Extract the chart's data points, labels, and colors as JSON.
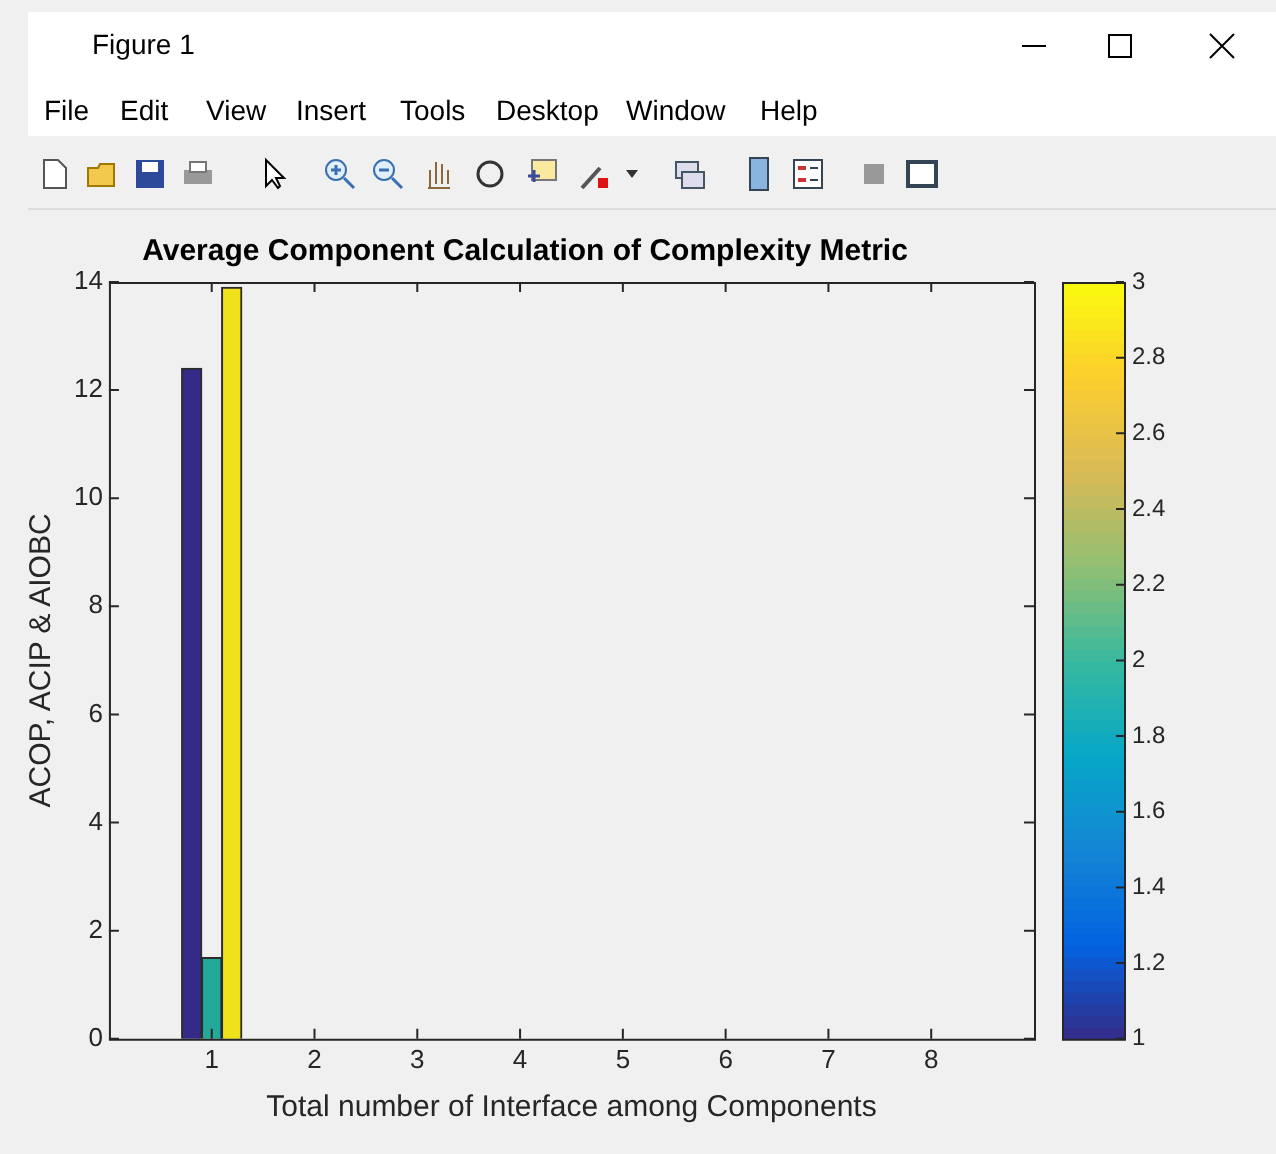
{
  "chart_data": {
    "type": "bar",
    "title": "Average Component Calculation of Complexity Metric",
    "xlabel": "Total number of Interface among Components",
    "ylabel": "ACOP, ACIP & AIOBC",
    "x": [
      1
    ],
    "series": [
      {
        "color": "#352a87",
        "values": [
          12.4
        ]
      },
      {
        "color": "#22a99a",
        "values": [
          1.5
        ]
      },
      {
        "color": "#f0e21a",
        "values": [
          13.9
        ]
      }
    ],
    "xlim": [
      0,
      9
    ],
    "xticks": [
      1,
      2,
      3,
      4,
      5,
      6,
      7,
      8
    ],
    "ylim": [
      0,
      14
    ],
    "yticks": [
      0,
      2,
      4,
      6,
      8,
      10,
      12,
      14
    ],
    "clim": [
      1,
      3
    ],
    "cticks": [
      1,
      1.2,
      1.4,
      1.6,
      1.8,
      2,
      2.2,
      2.4,
      2.6,
      2.8,
      3
    ],
    "annotations": [
      "Figure 1",
      "File",
      "Edit",
      "View",
      "Insert",
      "Tools",
      "Desktop",
      "Window",
      "Help"
    ]
  }
}
